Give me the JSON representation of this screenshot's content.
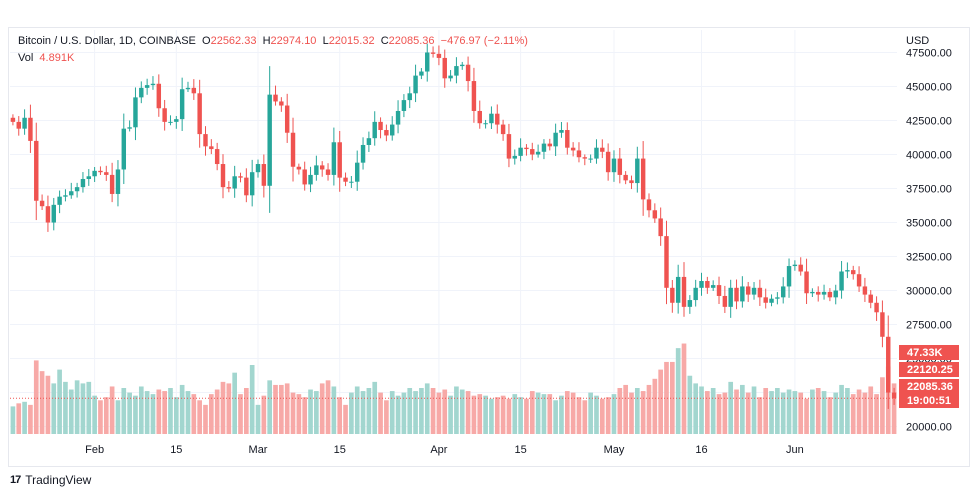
{
  "header": {
    "symbol": "Bitcoin / U.S. Dollar, 1D, COINBASE",
    "o_label": "O",
    "o_value": "22562.33",
    "h_label": "H",
    "h_value": "22974.10",
    "l_label": "L",
    "l_value": "22015.32",
    "c_label": "C",
    "c_value": "22085.36",
    "change": "−476.97 (−2.11%)",
    "vol_label": "Vol",
    "vol_value": "4.891K"
  },
  "currency": "USD",
  "footer": {
    "brand": "TradingView"
  },
  "colors": {
    "up": "#26a69a",
    "down": "#ef5350",
    "upVol": "#a2d6cf",
    "downVol": "#f7a9a7",
    "grid": "#f0f3fa",
    "axisText": "#131722"
  },
  "chart_data": {
    "type": "candlestick",
    "title": "Bitcoin / U.S. Dollar, 1D, COINBASE",
    "ylabel": "USD",
    "ylim": [
      19600,
      49300
    ],
    "y_ticks": [
      "20000.00",
      "22500.00",
      "25000.00",
      "27500.00",
      "30000.00",
      "32500.00",
      "35000.00",
      "37500.00",
      "40000.00",
      "42500.00",
      "45000.00",
      "47500.00"
    ],
    "x_ticks": [
      {
        "label": "Feb",
        "index": 14
      },
      {
        "label": "15",
        "index": 28
      },
      {
        "label": "Mar",
        "index": 42
      },
      {
        "label": "15",
        "index": 56
      },
      {
        "label": "Apr",
        "index": 73
      },
      {
        "label": "15",
        "index": 87
      },
      {
        "label": "May",
        "index": 103
      },
      {
        "label": "16",
        "index": 118
      },
      {
        "label": "Jun",
        "index": 134
      }
    ],
    "price_labels": [
      {
        "text": "47.33K",
        "kind": "volume"
      },
      {
        "text": "22120.25",
        "kind": "price"
      },
      {
        "text": "22085.36",
        "kind": "price"
      },
      {
        "text": "19:00:51",
        "kind": "countdown"
      }
    ],
    "last_price": 22085.36,
    "volume_max": 60000,
    "closes": [
      42400,
      41900,
      42700,
      41000,
      36600,
      36200,
      35000,
      36300,
      36900,
      37000,
      37300,
      37600,
      38200,
      38400,
      38800,
      38700,
      38500,
      37100,
      38900,
      41900,
      42000,
      44200,
      44900,
      45100,
      45200,
      43400,
      42400,
      42400,
      42600,
      44800,
      44900,
      44500,
      41500,
      40600,
      40400,
      39300,
      37600,
      37500,
      38400,
      38300,
      37000,
      38700,
      39300,
      37700,
      44400,
      43900,
      43600,
      41600,
      39100,
      38900,
      37800,
      38500,
      39200,
      38900,
      38500,
      40900,
      38300,
      38000,
      38000,
      39400,
      40700,
      41200,
      42400,
      41800,
      41400,
      42200,
      43200,
      44000,
      44500,
      45800,
      46100,
      47500,
      47400,
      47100,
      45600,
      45800,
      46500,
      46600,
      45400,
      43200,
      42300,
      42300,
      43000,
      42200,
      41500,
      39700,
      39900,
      40500,
      40400,
      40000,
      40200,
      40800,
      40600,
      41600,
      41800,
      40500,
      40300,
      39800,
      39700,
      39700,
      40500,
      40200,
      38700,
      39700,
      38500,
      38100,
      37900,
      39700,
      36700,
      35900,
      35300,
      34000,
      30200,
      29100,
      31000,
      28800,
      29300,
      30200,
      30700,
      30200,
      30400,
      29600,
      28800,
      30200,
      29200,
      30300,
      29700,
      30200,
      29500,
      29100,
      29400,
      29500,
      30300,
      31800,
      31900,
      31400,
      29800,
      29900,
      29700,
      29900,
      29500,
      30000,
      31400,
      31500,
      31200,
      30300,
      29700,
      29100,
      28400,
      26600,
      22500,
      22085
    ],
    "volumes": [
      18000,
      20000,
      21000,
      19000,
      48000,
      41000,
      38000,
      33000,
      42000,
      34000,
      29000,
      35000,
      33000,
      34000,
      25000,
      22000,
      24000,
      31000,
      22000,
      30000,
      27000,
      25000,
      31000,
      28000,
      26000,
      29000,
      28000,
      30000,
      24000,
      32000,
      28000,
      26000,
      22000,
      19000,
      26000,
      29000,
      34000,
      33000,
      40000,
      26000,
      30000,
      45000,
      19000,
      25000,
      35000,
      32000,
      32000,
      33000,
      27000,
      26000,
      24000,
      29000,
      28000,
      33000,
      35000,
      31000,
      24000,
      19000,
      27000,
      31000,
      28000,
      30000,
      34000,
      27000,
      22000,
      28000,
      25000,
      27000,
      30000,
      28000,
      30000,
      33000,
      30000,
      27000,
      29000,
      25000,
      31000,
      29000,
      28000,
      25000,
      26000,
      25000,
      23000,
      24000,
      25000,
      23000,
      26000,
      24000,
      23000,
      28000,
      27000,
      26000,
      26000,
      22000,
      25000,
      28000,
      27000,
      24000,
      22000,
      27000,
      25000,
      23000,
      24000,
      26000,
      30000,
      32000,
      27000,
      30000,
      28000,
      32000,
      36000,
      42000,
      47000,
      47000,
      56000,
      59000,
      38000,
      33000,
      31000,
      28000,
      30000,
      26000,
      27000,
      34000,
      29000,
      32000,
      27000,
      31000,
      24000,
      30000,
      28000,
      30000,
      27000,
      29000,
      28000,
      27000,
      23000,
      29000,
      30000,
      28000,
      24000,
      27000,
      32000,
      30000,
      26000,
      29000,
      27000,
      31000,
      26000,
      37000,
      44000,
      33000
    ]
  }
}
